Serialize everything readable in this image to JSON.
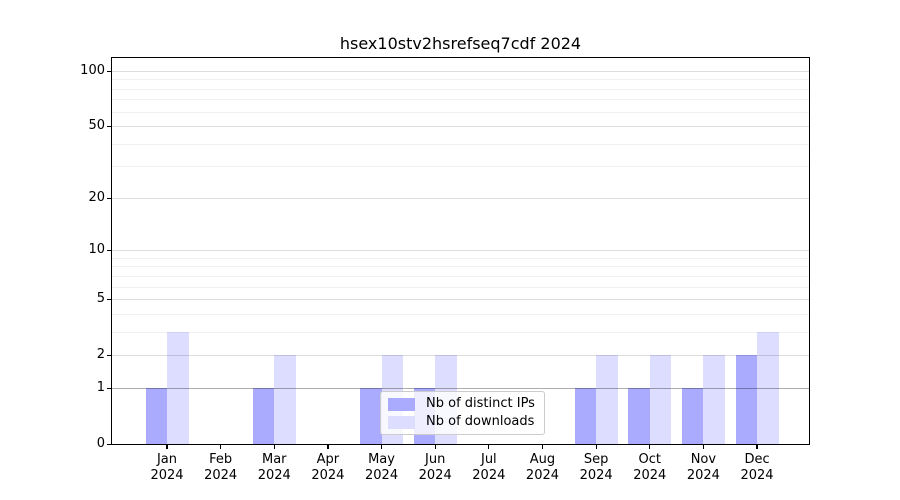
{
  "title": "hsex10stv2hsrefseq7cdf 2024",
  "chart_data": {
    "type": "bar",
    "title": "hsex10stv2hsrefseq7cdf 2024",
    "categories": [
      "Jan 2024",
      "Feb 2024",
      "Mar 2024",
      "Apr 2024",
      "May 2024",
      "Jun 2024",
      "Jul 2024",
      "Aug 2024",
      "Sep 2024",
      "Oct 2024",
      "Nov 2024",
      "Dec 2024"
    ],
    "x_tick_months": [
      "Jan",
      "Feb",
      "Mar",
      "Apr",
      "May",
      "Jun",
      "Jul",
      "Aug",
      "Sep",
      "Oct",
      "Nov",
      "Dec"
    ],
    "x_tick_year": "2024",
    "series": [
      {
        "name": "Nb of distinct IPs",
        "color": "#aaaaff",
        "values": [
          1,
          0,
          1,
          0,
          1,
          1,
          0,
          0,
          1,
          1,
          1,
          2
        ]
      },
      {
        "name": "Nb of downloads",
        "color": "#ddddff",
        "values": [
          3,
          0,
          2,
          0,
          2,
          2,
          0,
          0,
          2,
          2,
          2,
          3
        ]
      }
    ],
    "yscale": "log1p",
    "ylim": [
      0,
      118
    ],
    "yticks": [
      0,
      1,
      2,
      5,
      10,
      20,
      50,
      100
    ],
    "minor_gridlines": [
      3,
      4,
      6,
      7,
      8,
      9,
      30,
      40,
      60,
      70,
      80,
      90
    ],
    "grid": "horizontal",
    "grid_colors": {
      "minor": "rgba(0,0,0,0.055)",
      "major": "rgba(0,0,0,0.135)",
      "unit_line": "rgba(0,0,0,0.32)"
    },
    "legend_position": "lower center",
    "axis_color": "#000000",
    "background_color": "#ffffff"
  }
}
